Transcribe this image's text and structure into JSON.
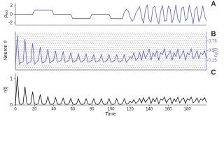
{
  "chart_data": [
    {
      "type": "line",
      "panel_label": "A",
      "ylabel": "ρ",
      "ylabel_sub": "ext",
      "color": "#5b5bd6",
      "xlim": [
        0,
        200
      ],
      "ylim": [
        -2.5,
        2.5
      ],
      "yticks": [
        -2,
        0,
        2
      ],
      "x": [
        0,
        2,
        4,
        6,
        8,
        10,
        12,
        14,
        16,
        18,
        20,
        22,
        24,
        26,
        28,
        30,
        32,
        34,
        36,
        38,
        40,
        42,
        44,
        46,
        48,
        50,
        52,
        54,
        56,
        58,
        60,
        62,
        64,
        66,
        68,
        70,
        72,
        74,
        76,
        78,
        80,
        82,
        84,
        86,
        88,
        90,
        92,
        94,
        96,
        98,
        100,
        102,
        104,
        106,
        108,
        110,
        112,
        114,
        116,
        118,
        120,
        122,
        124,
        126,
        128,
        130,
        132,
        134,
        136,
        138,
        140,
        142,
        144,
        146,
        148,
        150,
        152,
        154,
        156,
        158,
        160,
        162,
        164,
        166,
        168,
        170,
        172,
        174,
        176,
        178,
        180,
        182,
        184,
        186,
        188,
        190,
        192,
        194,
        196,
        198,
        200
      ],
      "values": [
        0,
        0,
        0,
        0,
        0,
        0,
        0,
        0,
        0,
        0,
        1,
        1,
        1,
        1,
        1,
        1,
        1,
        1,
        1,
        1,
        0,
        0,
        0,
        0,
        0,
        0,
        0,
        0,
        0,
        0,
        -1,
        -1,
        -1,
        -1,
        -1,
        -1,
        -1,
        -1,
        -1,
        -1,
        0,
        0,
        0,
        0,
        0,
        0,
        0,
        0,
        0,
        0,
        -1,
        -1,
        -1,
        -1,
        -1,
        -1,
        -1,
        0.5,
        1.2,
        0.8,
        -0.5,
        -1.6,
        -1.2,
        0.3,
        1.0,
        1.8,
        -0.5,
        -2.1,
        0.9,
        2.2,
        -1.3,
        -1.8,
        1.5,
        1.9,
        -0.8,
        -2.2,
        0.6,
        2.1,
        -1.6,
        -1.4,
        1.9,
        1.2,
        -2.0,
        -0.3,
        2.2,
        -1.1,
        -1.9,
        1.4,
        1.7,
        -1.5,
        -0.9,
        2.1,
        0.2,
        -2.2,
        1.0,
        1.8,
        -1.7,
        -0.6,
        2.0,
        -0.4,
        -1.5
      ]
    },
    {
      "type": "line",
      "panel_label": "B",
      "ylabel": "Neuron #",
      "y2label": "r",
      "y2label_sub": "E",
      "y2label_end": "(t)",
      "color": "#5b5bd6",
      "xlim": [
        0,
        200
      ],
      "y2lim": [
        0,
        1
      ],
      "y2ticks": [
        0.25,
        0.5,
        0.75
      ],
      "x": [
        0,
        2,
        4,
        6,
        8,
        10,
        12,
        14,
        16,
        18,
        20,
        22,
        24,
        26,
        28,
        30,
        32,
        34,
        36,
        38,
        40,
        42,
        44,
        46,
        48,
        50,
        52,
        54,
        56,
        58,
        60,
        62,
        64,
        66,
        68,
        70,
        72,
        74,
        76,
        78,
        80,
        82,
        84,
        86,
        88,
        90,
        92,
        94,
        96,
        98,
        100,
        102,
        104,
        106,
        108,
        110,
        112,
        114,
        116,
        118,
        120,
        122,
        124,
        126,
        128,
        130,
        132,
        134,
        136,
        138,
        140,
        142,
        144,
        146,
        148,
        150,
        152,
        154,
        156,
        158,
        160,
        162,
        164,
        166,
        168,
        170,
        172,
        174,
        176,
        178,
        180,
        182,
        184,
        186,
        188,
        190,
        192,
        194,
        196,
        198,
        200
      ],
      "values": [
        0.1,
        0.9,
        0.15,
        0.2,
        0.2,
        0.8,
        0.15,
        0.2,
        0.2,
        0.7,
        0.15,
        0.2,
        0.25,
        0.6,
        0.18,
        0.2,
        0.25,
        0.55,
        0.18,
        0.22,
        0.25,
        0.5,
        0.2,
        0.22,
        0.25,
        0.48,
        0.2,
        0.22,
        0.25,
        0.45,
        0.2,
        0.22,
        0.25,
        0.42,
        0.2,
        0.22,
        0.25,
        0.42,
        0.2,
        0.22,
        0.25,
        0.4,
        0.2,
        0.22,
        0.25,
        0.4,
        0.2,
        0.22,
        0.25,
        0.4,
        0.2,
        0.22,
        0.25,
        0.4,
        0.2,
        0.22,
        0.25,
        0.4,
        0.2,
        0.25,
        0.35,
        0.3,
        0.45,
        0.25,
        0.3,
        0.45,
        0.25,
        0.5,
        0.3,
        0.4,
        0.55,
        0.25,
        0.45,
        0.35,
        0.5,
        0.25,
        0.45,
        0.4,
        0.55,
        0.3,
        0.4,
        0.5,
        0.25,
        0.45,
        0.35,
        0.55,
        0.3,
        0.4,
        0.5,
        0.25,
        0.45,
        0.4,
        0.55,
        0.3,
        0.35,
        0.5,
        0.3,
        0.45,
        0.4,
        0.5,
        0.3
      ]
    },
    {
      "type": "line",
      "panel_label": "C",
      "ylabel": "r(t)",
      "xlabel": "Time",
      "color": "#111111",
      "xlim": [
        0,
        200
      ],
      "ylim": [
        0,
        1.2
      ],
      "yticks": [
        0,
        1
      ],
      "xticks": [
        0,
        20,
        40,
        60,
        80,
        100,
        120,
        140,
        160,
        180
      ],
      "x": [
        0,
        2,
        4,
        6,
        8,
        10,
        12,
        14,
        16,
        18,
        20,
        22,
        24,
        26,
        28,
        30,
        32,
        34,
        36,
        38,
        40,
        42,
        44,
        46,
        48,
        50,
        52,
        54,
        56,
        58,
        60,
        62,
        64,
        66,
        68,
        70,
        72,
        74,
        76,
        78,
        80,
        82,
        84,
        86,
        88,
        90,
        92,
        94,
        96,
        98,
        100,
        102,
        104,
        106,
        108,
        110,
        112,
        114,
        116,
        118,
        120,
        122,
        124,
        126,
        128,
        130,
        132,
        134,
        136,
        138,
        140,
        142,
        144,
        146,
        148,
        150,
        152,
        154,
        156,
        158,
        160,
        162,
        164,
        166,
        168,
        170,
        172,
        174,
        176,
        178,
        180,
        182,
        184,
        186,
        188,
        190,
        192,
        194,
        196,
        198,
        200
      ],
      "values": [
        0,
        1.1,
        0.05,
        0.02,
        0.05,
        0.7,
        0.05,
        0.02,
        0.05,
        0.5,
        0.04,
        0.02,
        0.05,
        0.4,
        0.04,
        0.02,
        0.05,
        0.32,
        0.04,
        0.02,
        0.05,
        0.28,
        0.04,
        0.02,
        0.05,
        0.26,
        0.04,
        0.02,
        0.05,
        0.25,
        0.04,
        0.02,
        0.05,
        0.24,
        0.04,
        0.02,
        0.05,
        0.24,
        0.04,
        0.02,
        0.05,
        0.24,
        0.04,
        0.02,
        0.05,
        0.24,
        0.04,
        0.02,
        0.05,
        0.24,
        0.04,
        0.02,
        0.05,
        0.24,
        0.04,
        0.02,
        0.05,
        0.24,
        0.04,
        0.05,
        0.15,
        0.08,
        0.2,
        0.06,
        0.12,
        0.25,
        0.08,
        0.28,
        0.1,
        0.2,
        0.3,
        0.06,
        0.25,
        0.12,
        0.28,
        0.05,
        0.22,
        0.18,
        0.3,
        0.08,
        0.2,
        0.27,
        0.05,
        0.24,
        0.12,
        0.3,
        0.08,
        0.2,
        0.27,
        0.06,
        0.24,
        0.18,
        0.3,
        0.08,
        0.14,
        0.27,
        0.1,
        0.24,
        0.18,
        0.28,
        0.09
      ]
    }
  ]
}
